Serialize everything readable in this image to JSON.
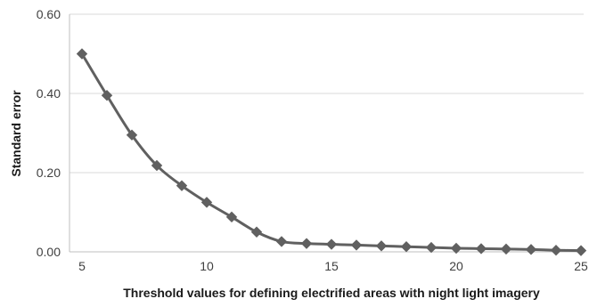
{
  "chart_data": {
    "type": "line",
    "title": "",
    "xlabel": "Threshold values for defining electrified areas with night light imagery",
    "ylabel": "Standard error",
    "xlim": [
      5,
      25
    ],
    "ylim": [
      0,
      0.6
    ],
    "x_ticks": [
      "5",
      "10",
      "15",
      "20",
      "25"
    ],
    "y_ticks": [
      "0.00",
      "0.20",
      "0.40",
      "0.60"
    ],
    "grid": true,
    "legend": "none",
    "series": [
      {
        "color": "#606060",
        "marker": "diamond",
        "x": [
          5,
          6,
          7,
          8,
          9,
          10,
          11,
          12,
          13,
          14,
          15,
          16,
          17,
          18,
          19,
          20,
          21,
          22,
          23,
          24,
          25
        ],
        "y": [
          0.5,
          0.395,
          0.295,
          0.218,
          0.167,
          0.125,
          0.088,
          0.05,
          0.026,
          0.021,
          0.019,
          0.017,
          0.015,
          0.013,
          0.011,
          0.009,
          0.008,
          0.007,
          0.006,
          0.004,
          0.003
        ]
      }
    ]
  }
}
